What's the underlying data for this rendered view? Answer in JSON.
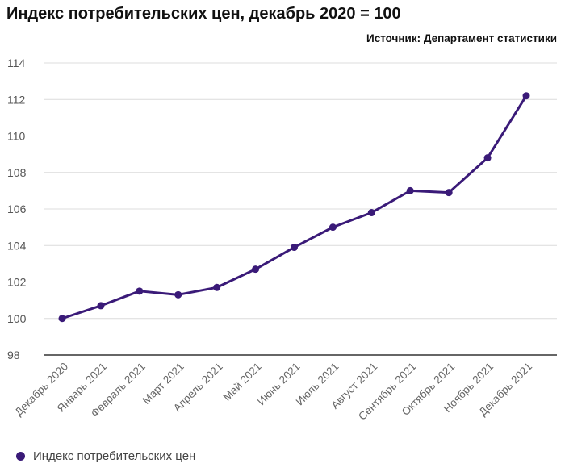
{
  "title": "Индекс потребительских цен, декабрь 2020 = 100",
  "source": "Источник: Департамент статистики",
  "colors": {
    "series": "#3a1a78",
    "grid": "#dcdcdc",
    "axis": "#333333"
  },
  "chart_data": {
    "type": "line",
    "categories": [
      "Декабрь 2020",
      "Январь 2021",
      "Февраль 2021",
      "Март 2021",
      "Апрель 2021",
      "Май 2021",
      "Июнь 2021",
      "Июль 2021",
      "Август 2021",
      "Сентябрь 2021",
      "Октябрь 2021",
      "Ноябрь 2021",
      "Декабрь 2021"
    ],
    "series": [
      {
        "name": "Индекс потребительских цен",
        "values": [
          100.0,
          100.7,
          101.5,
          101.3,
          101.7,
          102.7,
          103.9,
          105.0,
          105.8,
          107.0,
          106.9,
          108.8,
          112.2
        ]
      }
    ],
    "ylim": [
      98,
      114
    ],
    "yticks": [
      98,
      100,
      102,
      104,
      106,
      108,
      110,
      112,
      114
    ],
    "grid": true,
    "legend": "bottom-left"
  }
}
